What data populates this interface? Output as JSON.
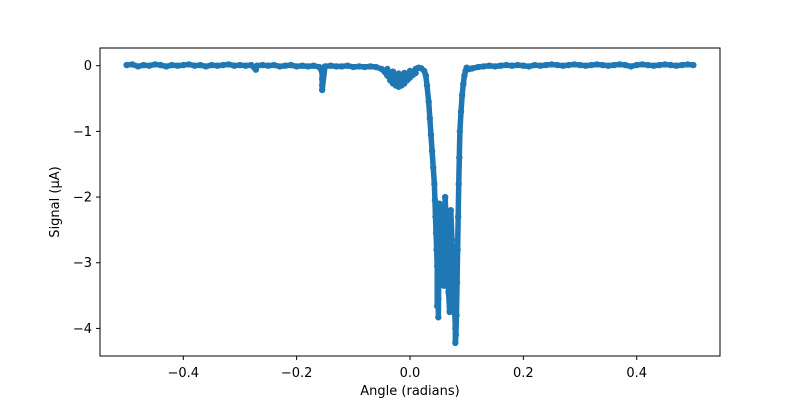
{
  "chart_data": {
    "type": "scatter",
    "xlabel": "Angle (radians)",
    "ylabel": "Signal (μA)",
    "xlim": [
      -0.547,
      0.547
    ],
    "ylim": [
      -4.42,
      0.27
    ],
    "xticks": [
      -0.4,
      -0.2,
      0.0,
      0.2,
      0.4
    ],
    "xtick_labels": [
      "−0.4",
      "−0.2",
      "0.0",
      "0.2",
      "0.4"
    ],
    "yticks": [
      0,
      -1,
      -2,
      -3,
      -4
    ],
    "ytick_labels": [
      "0",
      "−1",
      "−2",
      "−3",
      "−4"
    ],
    "grid": false,
    "marker_color": "#1f77b4",
    "series": [
      {
        "values": [
          [
            -0.5,
            0.01
          ],
          [
            -0.49,
            0.02
          ],
          [
            -0.48,
            -0.01
          ],
          [
            -0.47,
            0.01
          ],
          [
            -0.46,
            0.0
          ],
          [
            -0.45,
            0.02
          ],
          [
            -0.44,
            0.01
          ],
          [
            -0.43,
            -0.01
          ],
          [
            -0.42,
            0.01
          ],
          [
            -0.41,
            0.0
          ],
          [
            -0.4,
            0.01
          ],
          [
            -0.39,
            0.02
          ],
          [
            -0.38,
            0.0
          ],
          [
            -0.37,
            0.01
          ],
          [
            -0.36,
            -0.01
          ],
          [
            -0.35,
            0.01
          ],
          [
            -0.34,
            0.0
          ],
          [
            -0.33,
            0.01
          ],
          [
            -0.32,
            0.02
          ],
          [
            -0.31,
            0.0
          ],
          [
            -0.3,
            0.01
          ],
          [
            -0.29,
            0.0
          ],
          [
            -0.28,
            0.01
          ],
          [
            -0.272,
            -0.06
          ],
          [
            -0.27,
            0.0
          ],
          [
            -0.26,
            0.01
          ],
          [
            -0.25,
            0.0
          ],
          [
            -0.24,
            0.01
          ],
          [
            -0.23,
            -0.01
          ],
          [
            -0.22,
            0.0
          ],
          [
            -0.21,
            0.01
          ],
          [
            -0.2,
            -0.01
          ],
          [
            -0.19,
            0.0
          ],
          [
            -0.18,
            -0.01
          ],
          [
            -0.17,
            0.0
          ],
          [
            -0.16,
            -0.02
          ],
          [
            -0.155,
            -0.1
          ],
          [
            -0.155,
            -0.2
          ],
          [
            -0.155,
            -0.3
          ],
          [
            -0.155,
            -0.37
          ],
          [
            -0.15,
            -0.01
          ],
          [
            -0.14,
            0.0
          ],
          [
            -0.13,
            -0.01
          ],
          [
            -0.12,
            -0.01
          ],
          [
            -0.11,
            0.0
          ],
          [
            -0.1,
            -0.02
          ],
          [
            -0.09,
            -0.01
          ],
          [
            -0.08,
            -0.02
          ],
          [
            -0.07,
            -0.01
          ],
          [
            -0.06,
            -0.02
          ],
          [
            -0.05,
            -0.05
          ],
          [
            -0.045,
            -0.09
          ],
          [
            -0.04,
            -0.15
          ],
          [
            -0.035,
            -0.22
          ],
          [
            -0.03,
            -0.27
          ],
          [
            -0.025,
            -0.3
          ],
          [
            -0.02,
            -0.32
          ],
          [
            -0.015,
            -0.3
          ],
          [
            -0.01,
            -0.27
          ],
          [
            -0.005,
            -0.22
          ],
          [
            0.0,
            -0.18
          ],
          [
            0.005,
            -0.14
          ],
          [
            0.01,
            -0.11
          ],
          [
            -0.04,
            -0.05
          ],
          [
            -0.03,
            -0.09
          ],
          [
            -0.02,
            -0.12
          ],
          [
            -0.01,
            -0.11
          ],
          [
            0.0,
            -0.08
          ],
          [
            0.01,
            -0.05
          ],
          [
            0.015,
            -0.03
          ],
          [
            0.02,
            -0.04
          ],
          [
            0.025,
            -0.08
          ],
          [
            0.028,
            -0.15
          ],
          [
            0.03,
            -0.3
          ],
          [
            0.033,
            -0.55
          ],
          [
            0.035,
            -0.8
          ],
          [
            0.037,
            -1.05
          ],
          [
            0.039,
            -1.3
          ],
          [
            0.041,
            -1.55
          ],
          [
            0.043,
            -1.8
          ],
          [
            0.044,
            -2.05
          ],
          [
            0.045,
            -2.3
          ],
          [
            0.046,
            -2.55
          ],
          [
            0.047,
            -2.8
          ],
          [
            0.048,
            -3.05
          ],
          [
            0.049,
            -3.3
          ],
          [
            0.05,
            -3.55
          ],
          [
            0.05,
            -3.83
          ],
          [
            0.048,
            -3.66
          ],
          [
            0.052,
            -2.1
          ],
          [
            0.054,
            -2.45
          ],
          [
            0.056,
            -2.75
          ],
          [
            0.058,
            -3.05
          ],
          [
            0.06,
            -3.35
          ],
          [
            0.062,
            -2.0
          ],
          [
            0.064,
            -2.4
          ],
          [
            0.066,
            -2.9
          ],
          [
            0.068,
            -3.45
          ],
          [
            0.07,
            -3.75
          ],
          [
            0.072,
            -2.2
          ],
          [
            0.074,
            -2.65
          ],
          [
            0.076,
            -3.1
          ],
          [
            0.078,
            -3.55
          ],
          [
            0.08,
            -4.0
          ],
          [
            0.08,
            -4.22
          ],
          [
            0.081,
            -4.1
          ],
          [
            0.082,
            -3.8
          ],
          [
            0.083,
            -3.3
          ],
          [
            0.084,
            -2.8
          ],
          [
            0.085,
            -2.3
          ],
          [
            0.086,
            -1.8
          ],
          [
            0.087,
            -1.4
          ],
          [
            0.088,
            -1.0
          ],
          [
            0.09,
            -0.7
          ],
          [
            0.092,
            -0.45
          ],
          [
            0.094,
            -0.28
          ],
          [
            0.096,
            -0.15
          ],
          [
            0.098,
            -0.08
          ],
          [
            0.1,
            -0.03
          ],
          [
            0.105,
            -0.05
          ],
          [
            0.11,
            -0.04
          ],
          [
            0.12,
            -0.02
          ],
          [
            0.13,
            -0.01
          ],
          [
            0.14,
            0.0
          ],
          [
            0.15,
            -0.01
          ],
          [
            0.16,
            0.0
          ],
          [
            0.17,
            0.01
          ],
          [
            0.18,
            0.0
          ],
          [
            0.19,
            0.01
          ],
          [
            0.2,
            0.0
          ],
          [
            0.21,
            -0.01
          ],
          [
            0.22,
            0.01
          ],
          [
            0.23,
            0.0
          ],
          [
            0.24,
            0.01
          ],
          [
            0.25,
            0.02
          ],
          [
            0.26,
            0.01
          ],
          [
            0.27,
            0.0
          ],
          [
            0.28,
            0.01
          ],
          [
            0.29,
            0.02
          ],
          [
            0.3,
            0.01
          ],
          [
            0.31,
            0.0
          ],
          [
            0.32,
            0.01
          ],
          [
            0.33,
            0.02
          ],
          [
            0.34,
            0.01
          ],
          [
            0.35,
            0.0
          ],
          [
            0.36,
            0.01
          ],
          [
            0.37,
            0.02
          ],
          [
            0.38,
            0.01
          ],
          [
            0.39,
            -0.01
          ],
          [
            0.4,
            0.01
          ],
          [
            0.41,
            0.02
          ],
          [
            0.42,
            0.01
          ],
          [
            0.43,
            0.0
          ],
          [
            0.44,
            0.01
          ],
          [
            0.45,
            0.02
          ],
          [
            0.46,
            0.01
          ],
          [
            0.47,
            0.0
          ],
          [
            0.48,
            0.01
          ],
          [
            0.49,
            0.02
          ],
          [
            0.5,
            0.01
          ]
        ]
      }
    ]
  }
}
